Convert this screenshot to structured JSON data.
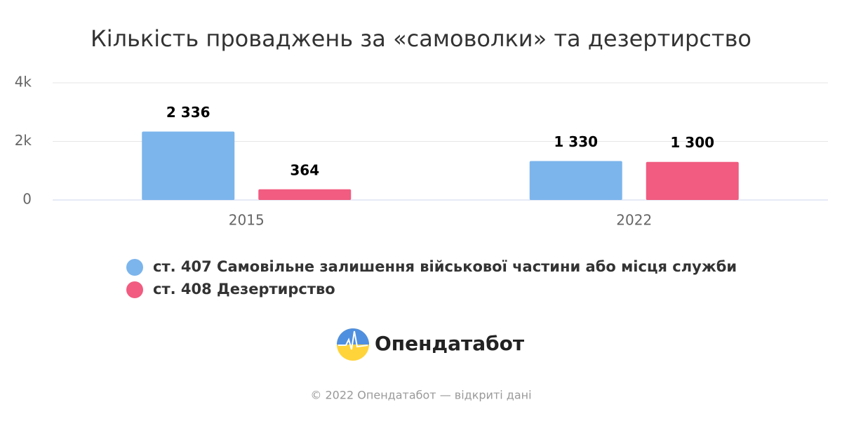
{
  "chart_data": {
    "type": "bar",
    "title": "Кількість проваджень за «самоволки» та дезертирство",
    "categories": [
      "2015",
      "2022"
    ],
    "series": [
      {
        "name": "ст. 407 Самовільне залишення військової частини або місця служби",
        "color": "#7cb5ec",
        "values": [
          2336,
          1330
        ],
        "value_labels": [
          "2 336",
          "1 330"
        ]
      },
      {
        "name": "ст. 408 Дезертирство",
        "color": "#f15c80",
        "values": [
          364,
          1300
        ],
        "value_labels": [
          "364",
          "1 300"
        ]
      }
    ],
    "ylim": [
      0,
      4000
    ],
    "yticks": [
      0,
      {
        "value": 2000,
        "label": "2k"
      },
      {
        "value": 4000,
        "label": "4k"
      }
    ],
    "grid": true,
    "logo_text": "Опендатабот",
    "credits": "© 2022 Опендатабот — відкриті дані"
  }
}
